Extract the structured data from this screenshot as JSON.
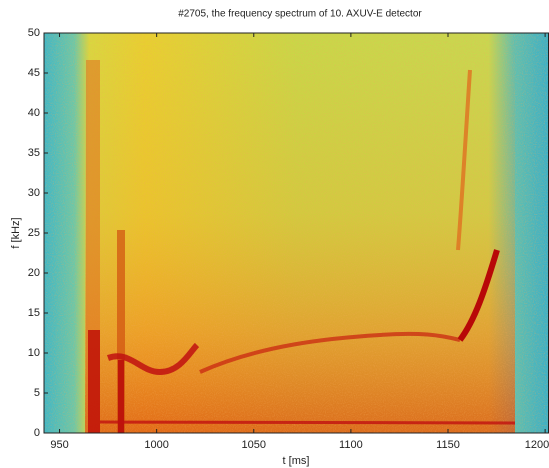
{
  "chart_data": {
    "type": "spectrogram",
    "title": "#2705, the frequency spectrum of 10. AXUV-E detector",
    "x_label": "t [ms]",
    "y_label": "f [kHz]",
    "xlim": [
      942,
      1202
    ],
    "xticks": [
      950,
      1000,
      1050,
      1100,
      1150,
      1200
    ],
    "ylim": [
      0,
      50
    ],
    "yticks": [
      0,
      5,
      10,
      15,
      20,
      25,
      30,
      35,
      40,
      45,
      50
    ]
  }
}
